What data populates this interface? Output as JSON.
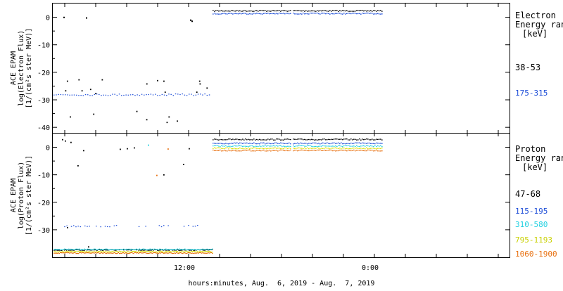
{
  "chart_data": [
    {
      "type": "scatter",
      "panel": "electron",
      "ylabel": [
        "ACE EPAM",
        "log(Electron Flux)",
        "[1/(cm²s ster MeV)]"
      ],
      "ylim": [
        -42,
        5
      ],
      "yticks": [
        0,
        -10,
        -20,
        -30,
        -40
      ],
      "ytick_labels": [
        "0",
        "-10",
        "-20",
        "-30",
        "-40"
      ],
      "legend_title": [
        "Electron",
        "Energy ran",
        "[keV]"
      ],
      "series": [
        {
          "name": "38-53",
          "color": "#000000",
          "level_after": 2.5,
          "scatter": [
            -22.8,
            -24,
            -26.5,
            -27,
            -26,
            -25.5,
            -24,
            -23,
            -22.5,
            -27.5,
            -35,
            -37,
            -36,
            -37.5,
            -38,
            -36,
            -34,
            -23,
            -22.5,
            -23,
            -26.5,
            -27
          ]
        },
        {
          "name": "175-315",
          "color": "#1f4fd8",
          "level_after": 1.5,
          "band_before": -28
        }
      ]
    },
    {
      "type": "scatter",
      "panel": "proton",
      "ylabel": [
        "ACE EPAM",
        "log(Proton Flux)",
        "[1/(cm²s ster MeV)]"
      ],
      "ylim": [
        -40,
        5
      ],
      "yticks": [
        0,
        -10,
        -20,
        -30
      ],
      "ytick_labels": [
        "0",
        "-10",
        "-20",
        "-30"
      ],
      "legend_title": [
        "Proton",
        "Energy ran",
        "[keV]"
      ],
      "series": [
        {
          "name": "47-68",
          "color": "#000000",
          "level_after": 3,
          "band_before": -37.2
        },
        {
          "name": "115-195",
          "color": "#1f4fd8",
          "level_after": 1.6,
          "band_before": -28.5
        },
        {
          "name": "310-580",
          "color": "#20d0e0",
          "level_after": 0.6,
          "band_before": -37
        },
        {
          "name": "795-1193",
          "color": "#d8e000",
          "level_after": -0.2,
          "band_before": -37.8
        },
        {
          "name": "1060-1900",
          "color": "#e87010",
          "level_after": -1,
          "band_before": -38.3
        }
      ]
    }
  ],
  "x_axis": {
    "tick_labels": [
      "12:00",
      "0:00"
    ],
    "label": "hours:minutes, Aug.  6, 2019 - Aug.  7, 2019"
  }
}
